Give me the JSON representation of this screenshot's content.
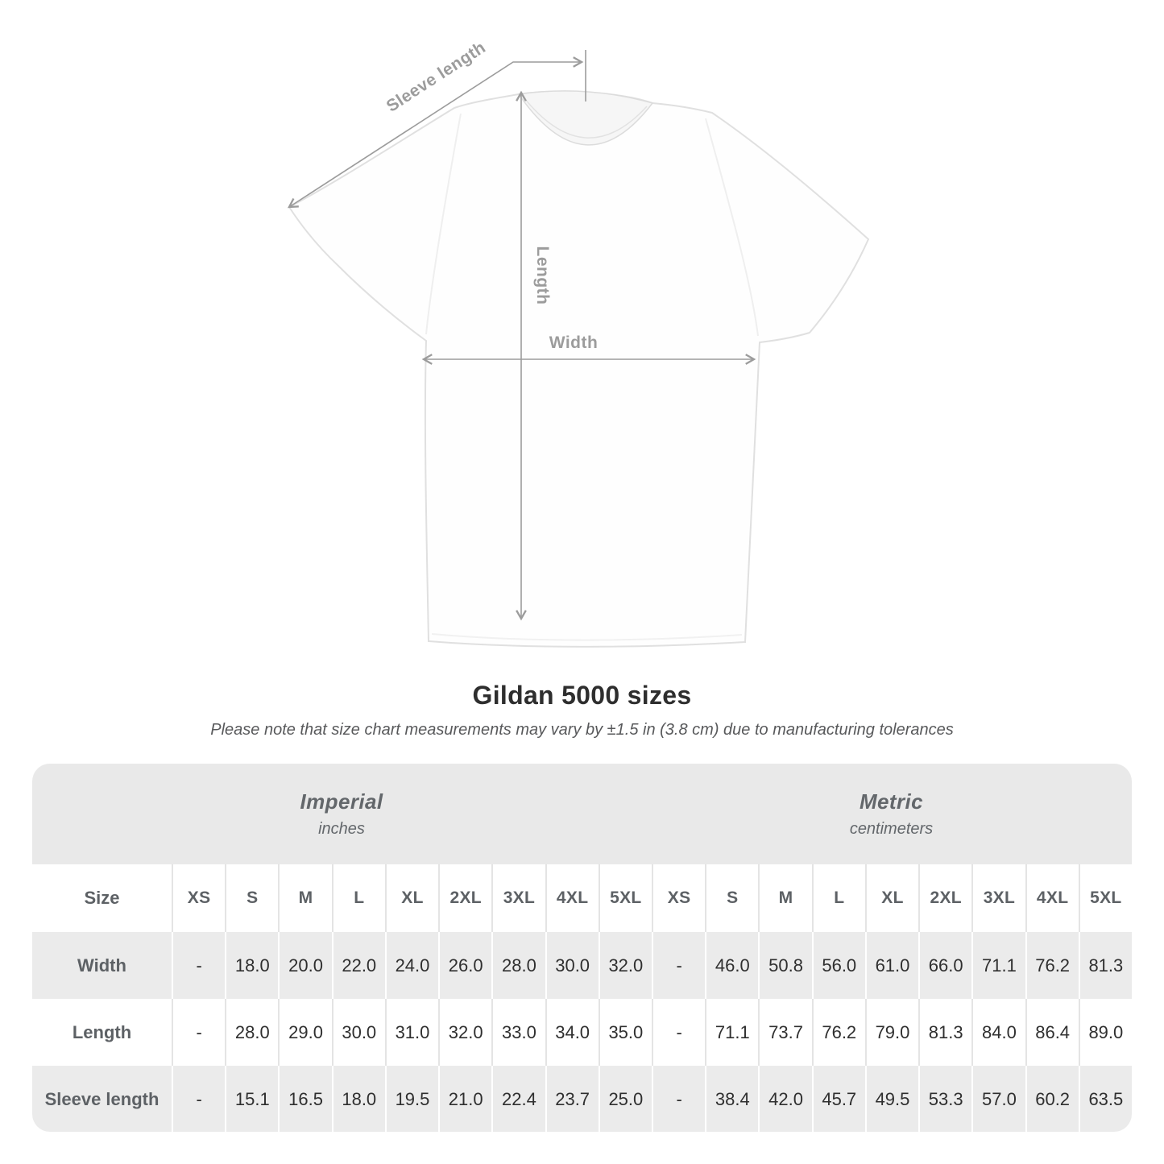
{
  "page": {
    "title": "Gildan 5000 sizes",
    "note": "Please note that size chart measurements may vary by ±1.5 in (3.8 cm) due to manufacturing tolerances"
  },
  "diagram": {
    "sleeve_length_label": "Sleeve length",
    "length_label": "Length",
    "width_label": "Width"
  },
  "table": {
    "size_header": "Size",
    "sections": [
      {
        "title": "Imperial",
        "subtitle": "inches"
      },
      {
        "title": "Metric",
        "subtitle": "centimeters"
      }
    ],
    "sizes": [
      "XS",
      "S",
      "M",
      "L",
      "XL",
      "2XL",
      "3XL",
      "4XL",
      "5XL"
    ],
    "rows": [
      {
        "label": "Width",
        "imperial": [
          "-",
          "18.0",
          "20.0",
          "22.0",
          "24.0",
          "26.0",
          "28.0",
          "30.0",
          "32.0"
        ],
        "metric": [
          "-",
          "46.0",
          "50.8",
          "56.0",
          "61.0",
          "66.0",
          "71.1",
          "76.2",
          "81.3"
        ]
      },
      {
        "label": "Length",
        "imperial": [
          "-",
          "28.0",
          "29.0",
          "30.0",
          "31.0",
          "32.0",
          "33.0",
          "34.0",
          "35.0"
        ],
        "metric": [
          "-",
          "71.1",
          "73.7",
          "76.2",
          "79.0",
          "81.3",
          "84.0",
          "86.4",
          "89.0"
        ]
      },
      {
        "label": "Sleeve length",
        "imperial": [
          "-",
          "15.1",
          "16.5",
          "18.0",
          "19.5",
          "21.0",
          "22.4",
          "23.7",
          "25.0"
        ],
        "metric": [
          "-",
          "38.4",
          "42.0",
          "45.7",
          "49.5",
          "53.3",
          "57.0",
          "60.2",
          "63.5"
        ]
      }
    ]
  },
  "colors": {
    "header_band": "#e9e9e9",
    "row_alt": "#ebebeb",
    "divider_on_white": "#e4e4e4",
    "divider_on_gray": "#ffffff",
    "label_text": "#5d6165",
    "value_text": "#2f2f2f",
    "title_text": "#2e2e2e",
    "note_text": "#58595b",
    "annotation": "#9c9c9c",
    "shirt_outline": "#e0e0e0"
  }
}
